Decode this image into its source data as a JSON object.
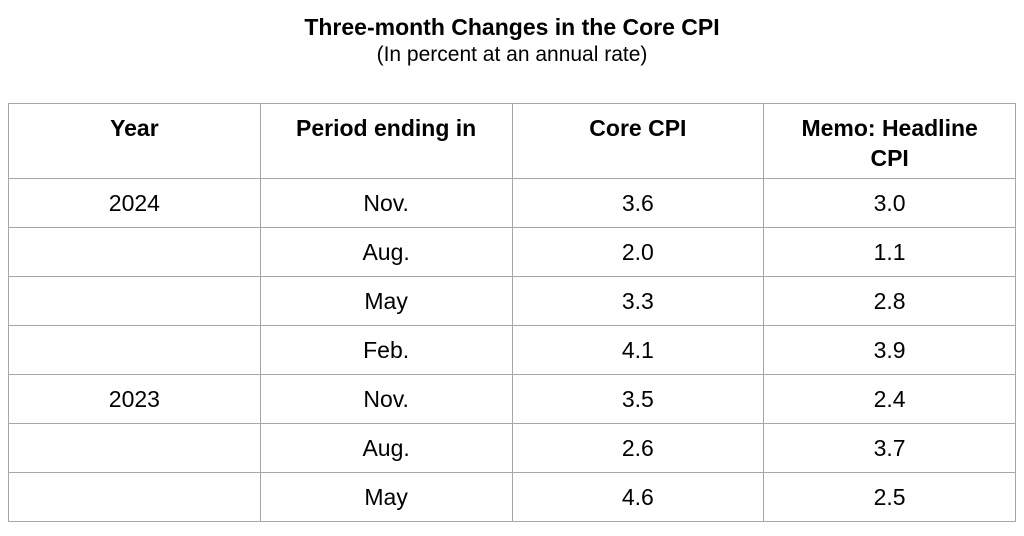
{
  "title": "Three-month Changes in the Core CPI",
  "subtitle": "(In percent at an annual rate)",
  "table": {
    "columns": [
      "Year",
      "Period ending in",
      "Core CPI",
      "Memo: Headline CPI"
    ],
    "rows": [
      {
        "year": "2024",
        "period": "Nov.",
        "core_cpi": "3.6",
        "headline_cpi": "3.0"
      },
      {
        "year": "",
        "period": "Aug.",
        "core_cpi": "2.0",
        "headline_cpi": "1.1"
      },
      {
        "year": "",
        "period": "May",
        "core_cpi": "3.3",
        "headline_cpi": "2.8"
      },
      {
        "year": "",
        "period": "Feb.",
        "core_cpi": "4.1",
        "headline_cpi": "3.9"
      },
      {
        "year": "2023",
        "period": "Nov.",
        "core_cpi": "3.5",
        "headline_cpi": "2.4"
      },
      {
        "year": "",
        "period": "Aug.",
        "core_cpi": "2.6",
        "headline_cpi": "3.7"
      },
      {
        "year": "",
        "period": "May",
        "core_cpi": "4.6",
        "headline_cpi": "2.5"
      }
    ]
  },
  "chart_data": {
    "type": "table",
    "title": "Three-month Changes in the Core CPI",
    "subtitle": "(In percent at an annual rate)",
    "columns": [
      "Year",
      "Period ending in",
      "Core CPI",
      "Memo: Headline CPI"
    ],
    "rows": [
      [
        "2024",
        "Nov.",
        3.6,
        3.0
      ],
      [
        "",
        "Aug.",
        2.0,
        1.1
      ],
      [
        "",
        "May",
        3.3,
        2.8
      ],
      [
        "",
        "Feb.",
        4.1,
        3.9
      ],
      [
        "2023",
        "Nov.",
        3.5,
        2.4
      ],
      [
        "",
        "Aug.",
        2.6,
        3.7
      ],
      [
        "",
        "May",
        4.6,
        2.5
      ]
    ],
    "units": "percent, annual rate",
    "layout": {
      "grid": true,
      "header_style": "bold",
      "alignment": "center"
    }
  },
  "colors": {
    "border": "#a6a6a6",
    "text": "#000000",
    "background": "#ffffff"
  }
}
